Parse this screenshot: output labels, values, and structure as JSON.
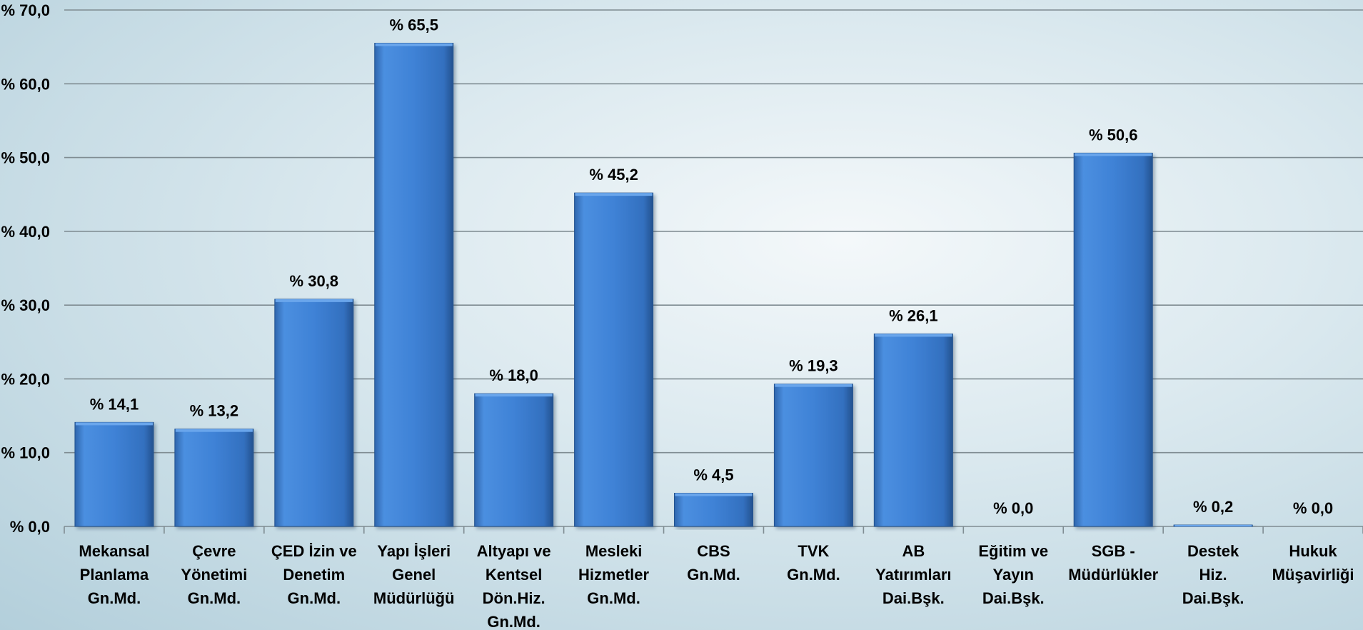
{
  "chart_data": {
    "type": "bar",
    "title": "",
    "xlabel": "",
    "ylabel": "",
    "ylim": [
      0,
      70
    ],
    "y_ticks": [
      0,
      10,
      20,
      30,
      40,
      50,
      60,
      70
    ],
    "y_tick_labels": [
      "% 0,0",
      "% 10,0",
      "% 20,0",
      "% 30,0",
      "% 40,0",
      "% 50,0",
      "% 60,0",
      "% 70,0"
    ],
    "grid": true,
    "legend": "none",
    "bar_color": "#3d7fd3",
    "categories": [
      [
        "Mekansal",
        "Planlama",
        "Gn.Md."
      ],
      [
        "Çevre",
        "Yönetimi",
        "Gn.Md."
      ],
      [
        "ÇED İzin ve",
        "Denetim",
        "Gn.Md."
      ],
      [
        "Yapı İşleri",
        "Genel",
        "Müdürlüğü"
      ],
      [
        "Altyapı ve",
        "Kentsel",
        "Dön.Hiz.",
        "Gn.Md."
      ],
      [
        "Mesleki",
        "Hizmetler",
        "Gn.Md."
      ],
      [
        "CBS",
        "Gn.Md."
      ],
      [
        "TVK",
        "Gn.Md."
      ],
      [
        "AB",
        "Yatırımları",
        "Dai.Bşk."
      ],
      [
        "Eğitim ve",
        "Yayın",
        "Dai.Bşk."
      ],
      [
        "SGB -",
        "Müdürlükler"
      ],
      [
        "Destek",
        "Hiz.",
        "Dai.Bşk."
      ],
      [
        "Hukuk",
        "Müşavirliği"
      ]
    ],
    "values": [
      14.1,
      13.2,
      30.8,
      65.5,
      18.0,
      45.2,
      4.5,
      19.3,
      26.1,
      0.0,
      50.6,
      0.2,
      0.0
    ],
    "value_labels": [
      "% 14,1",
      "% 13,2",
      "% 30,8",
      "% 65,5",
      "% 18,0",
      "% 45,2",
      "% 4,5",
      "% 19,3",
      "% 26,1",
      "% 0,0",
      "% 50,6",
      "% 0,2",
      "% 0,0"
    ]
  }
}
